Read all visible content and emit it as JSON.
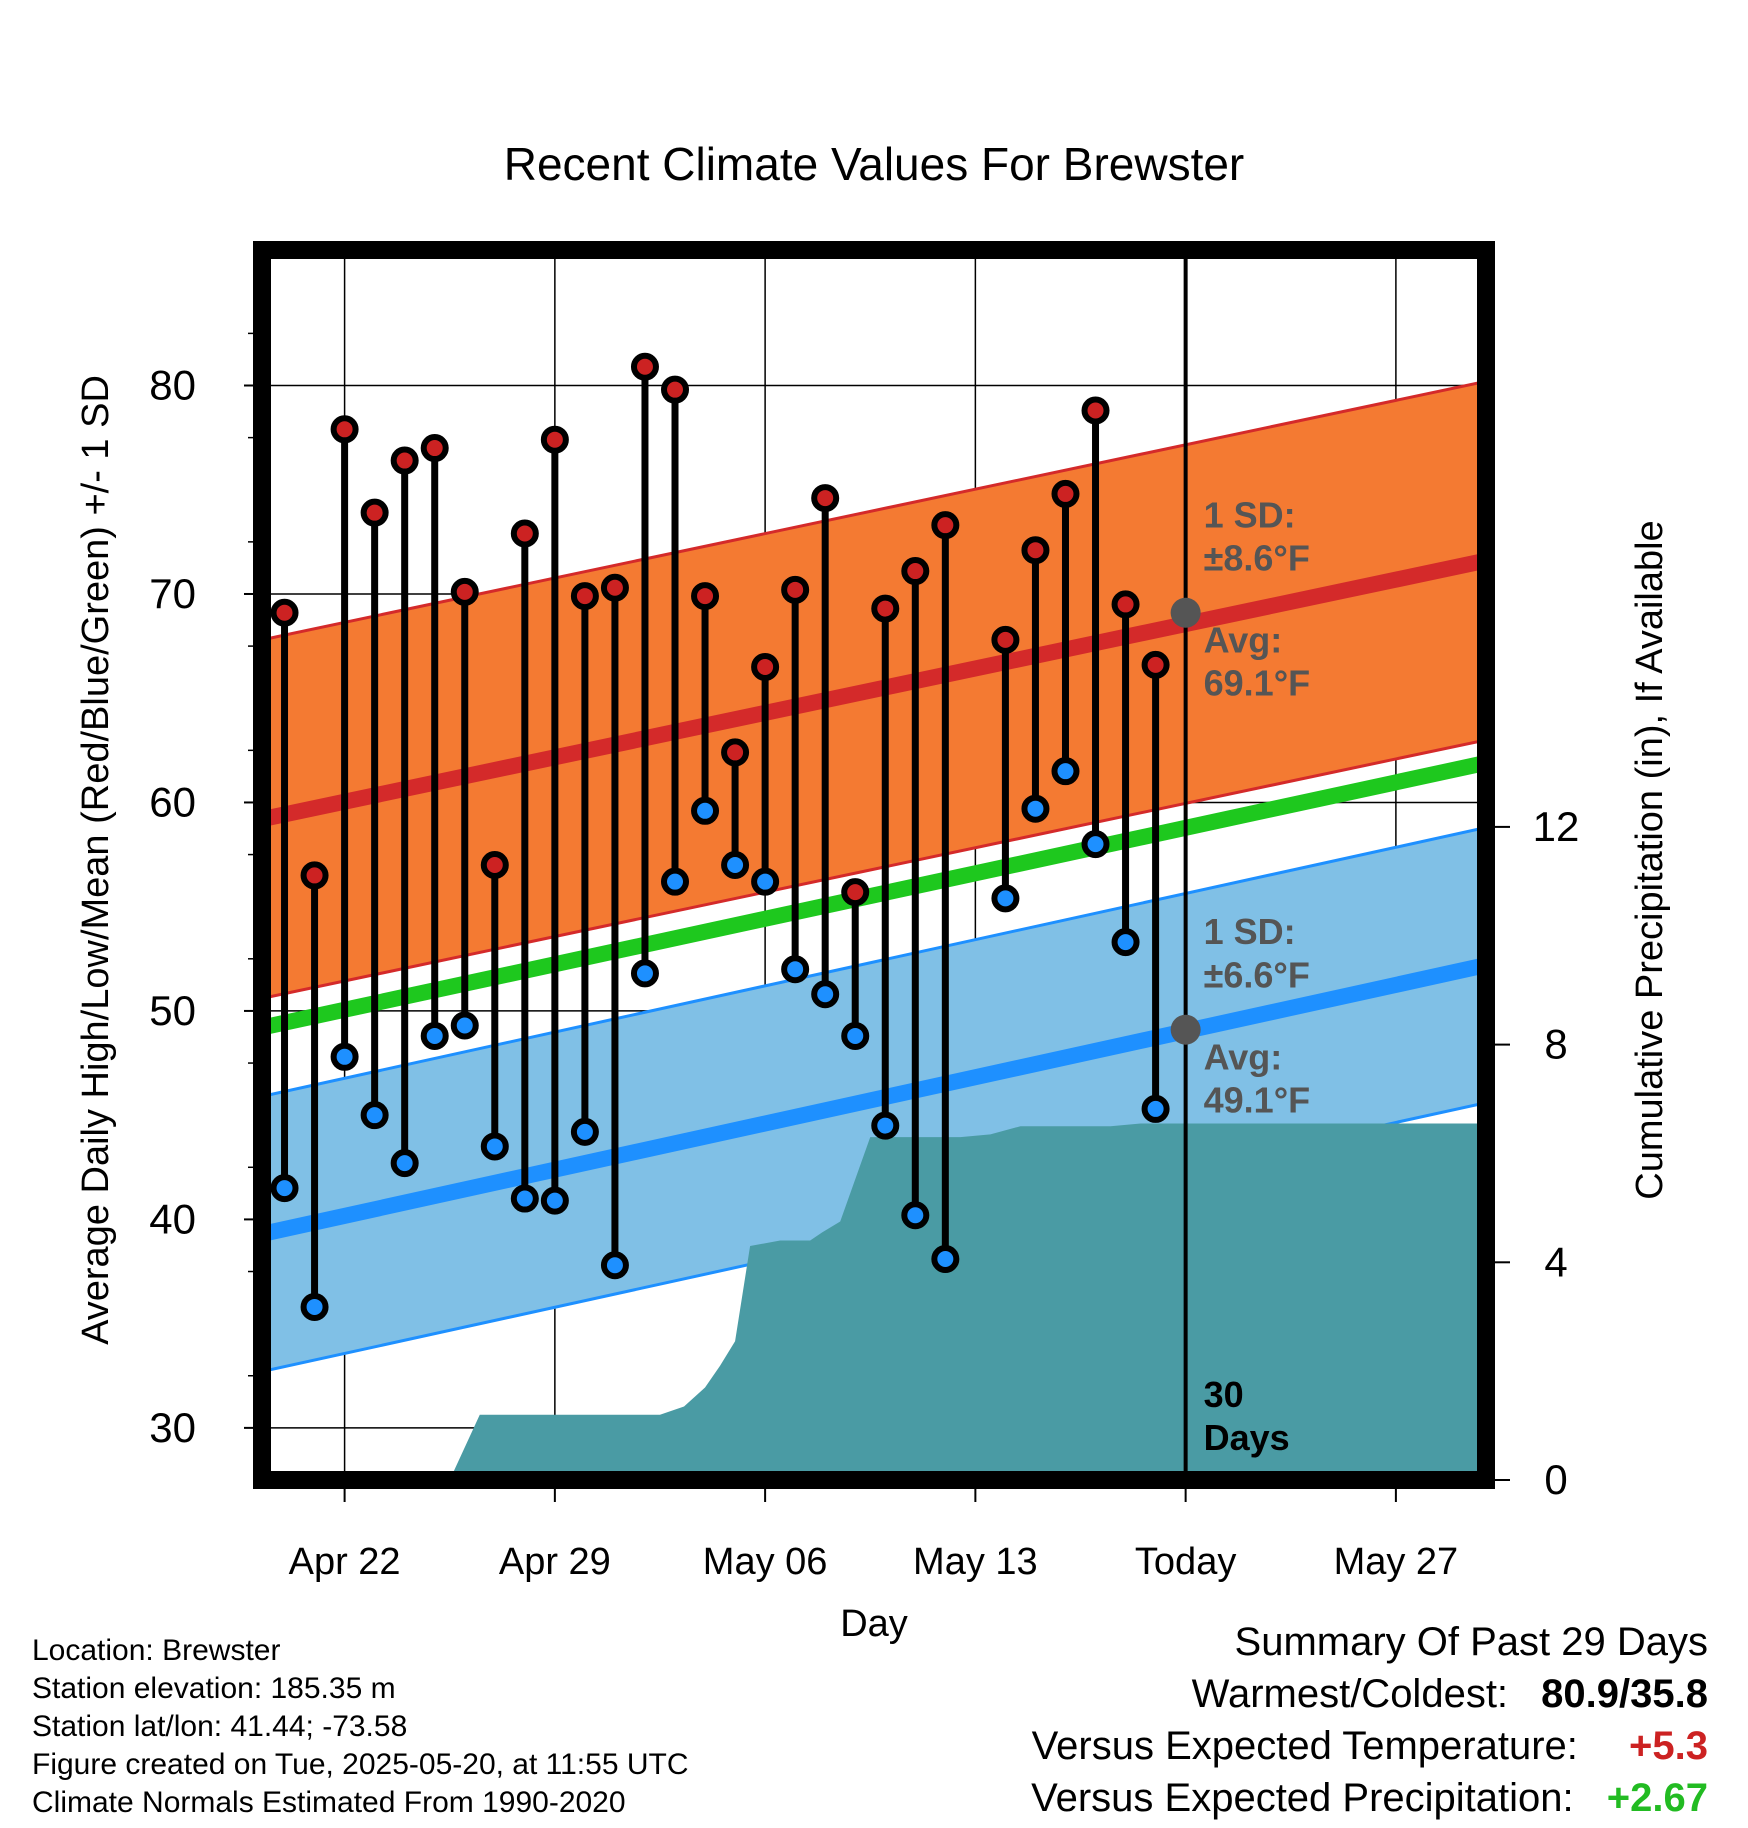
{
  "chart_data": {
    "type": "line",
    "title": "Recent Climate Values For Brewster",
    "xlabel": "Day",
    "ylabel": "Average Daily High/Low/Mean (Red/Blue/Green) +/- 1 SD",
    "y2label": "Cumulative Precipitation (in), If Available",
    "ylim": [
      27.5,
      86.5
    ],
    "y2lim": [
      0,
      22.6
    ],
    "xlim": [
      -0.75,
      40.0
    ],
    "y_ticks": [
      30,
      40,
      50,
      60,
      70,
      80
    ],
    "y2_ticks": [
      0,
      4,
      8,
      12
    ],
    "x_ticks": [
      {
        "day": 2,
        "label": "Apr 22"
      },
      {
        "day": 9,
        "label": "Apr 29"
      },
      {
        "day": 16,
        "label": "May 06"
      },
      {
        "day": 23,
        "label": "May 13"
      },
      {
        "day": 30,
        "label": "Today"
      },
      {
        "day": 37,
        "label": "May 27"
      }
    ],
    "today_day": 30,
    "today_label": [
      "30",
      "Days"
    ],
    "highs": [
      69.1,
      56.5,
      77.9,
      73.9,
      76.4,
      77.0,
      70.1,
      57.0,
      72.9,
      77.4,
      69.9,
      70.3,
      80.9,
      79.8,
      69.9,
      62.4,
      66.5,
      70.2,
      74.6,
      55.7,
      69.3,
      71.1,
      73.3,
      null,
      67.8,
      72.1,
      74.8,
      78.8,
      69.5,
      66.6
    ],
    "lows": [
      41.5,
      35.8,
      47.8,
      45.0,
      42.7,
      48.8,
      49.3,
      43.5,
      41.0,
      40.9,
      44.2,
      37.8,
      51.8,
      56.2,
      59.6,
      57.0,
      56.2,
      52.0,
      50.8,
      48.8,
      44.5,
      40.2,
      38.1,
      null,
      55.4,
      59.7,
      61.5,
      58.0,
      53.3,
      45.3
    ],
    "normal_high": {
      "start": 59.2,
      "end": 71.6,
      "sd": 8.6
    },
    "normal_low": {
      "start": 39.3,
      "end": 52.2,
      "sd": 6.6
    },
    "normal_mean": {
      "start": 49.2,
      "end": 61.9
    },
    "precip_x": [
      5.5,
      6.5,
      7.5,
      8.5,
      9.5,
      10.5,
      11.5,
      12.5,
      13.3,
      14.0,
      14.5,
      15.0,
      15.5,
      16.5,
      17.5,
      17.9,
      18.5,
      19.5,
      20.5,
      21.5,
      22.5,
      23.5,
      24.5,
      25.5,
      26.5,
      27.5,
      28.5,
      29.5,
      30.5,
      40.0
    ],
    "precip_cum": [
      0,
      1.2,
      1.2,
      1.2,
      1.2,
      1.2,
      1.2,
      1.2,
      1.35,
      1.7,
      2.1,
      2.55,
      4.3,
      4.4,
      4.4,
      4.55,
      4.75,
      6.3,
      6.3,
      6.3,
      6.3,
      6.35,
      6.5,
      6.5,
      6.5,
      6.5,
      6.55,
      6.55,
      6.55,
      6.55
    ],
    "annotations": {
      "high_sd_label": [
        "1 SD:",
        "±8.6°F"
      ],
      "high_avg_label": [
        "Avg:",
        "69.1°F"
      ],
      "low_sd_label": [
        "1 SD:",
        "±6.6°F"
      ],
      "low_avg_label": [
        "Avg:",
        "49.1°F"
      ],
      "high_avg_value": 69.1,
      "low_avg_value": 49.1
    },
    "colors": {
      "high_band": "#f47a32",
      "high_line": "#d42a2a",
      "low_band": "#80c0e6",
      "low_line": "#1e90ff",
      "mean_line": "#1ec81e",
      "precip": "#4a9ba4",
      "high_marker": "#cc2222",
      "low_marker": "#1e90ff",
      "annotation": "#555555"
    }
  },
  "footer": {
    "location": "Location: Brewster",
    "elevation": "Station elevation: 185.35 m",
    "latlon": "Station lat/lon: 41.44; -73.58",
    "created": "Figure created on Tue, 2025-05-20, at 11:55 UTC",
    "normals": "Climate Normals Estimated From 1990-2020"
  },
  "summary": {
    "title": "Summary Of Past 29 Days",
    "warm_cold_label": "Warmest/Coldest:",
    "warm_cold_value": "80.9/35.8",
    "temp_label": "Versus Expected Temperature:",
    "temp_value": "+5.3",
    "precip_label": "Versus Expected Precipitation:",
    "precip_value": "+2.67",
    "temp_color": "#cc2222",
    "precip_color": "#22bb22"
  }
}
